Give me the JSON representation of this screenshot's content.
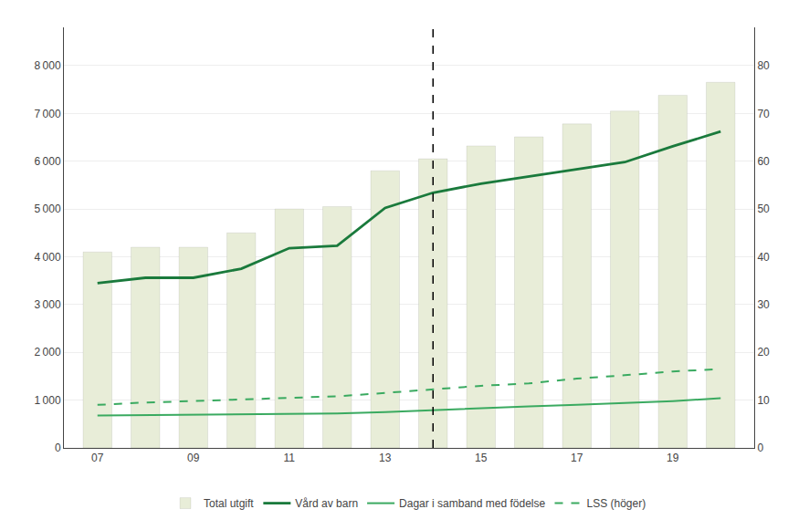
{
  "chart_data": {
    "type": "bar",
    "x": [
      7,
      8,
      9,
      10,
      11,
      12,
      13,
      14,
      15,
      16,
      17,
      18,
      19,
      20
    ],
    "xlim": [
      6.3,
      20.7
    ],
    "xticks": [
      {
        "value": 7,
        "label": "07"
      },
      {
        "value": 9,
        "label": "09"
      },
      {
        "value": 11,
        "label": "11"
      },
      {
        "value": 13,
        "label": "13"
      },
      {
        "value": 15,
        "label": "15"
      },
      {
        "value": 17,
        "label": "17"
      },
      {
        "value": 19,
        "label": "19"
      }
    ],
    "ylim": [
      0,
      8800
    ],
    "yticks": [
      0,
      {
        "value": 1000,
        "label": "1 000"
      },
      {
        "value": 2000,
        "label": "2 000"
      },
      {
        "value": 3000,
        "label": "3 000"
      },
      {
        "value": 4000,
        "label": "4 000"
      },
      {
        "value": 5000,
        "label": "5 000"
      },
      {
        "value": 6000,
        "label": "6 000"
      },
      {
        "value": 7000,
        "label": "7 000"
      },
      {
        "value": 8000,
        "label": "8 000"
      }
    ],
    "y2lim": [
      0,
      88
    ],
    "y2ticks": [
      0,
      10,
      20,
      30,
      40,
      50,
      60,
      70,
      80
    ],
    "grid": true,
    "legend": "bottom",
    "series": [
      {
        "name": "Total utgift",
        "type": "bar",
        "color": "#e8edd8",
        "values": [
          4100,
          4200,
          4200,
          4500,
          5000,
          5050,
          5800,
          6050,
          6320,
          6510,
          6780,
          7050,
          7380,
          7650
        ]
      },
      {
        "name": "Vård av barn",
        "type": "line",
        "color": "#1a7a3c",
        "line_style": "solid",
        "values": [
          3450,
          3560,
          3560,
          3750,
          4180,
          4230,
          5020,
          5340,
          5530,
          5680,
          5840,
          5980,
          6310,
          6620
        ]
      },
      {
        "name": "Dagar i samband med födelse",
        "type": "line",
        "color": "#3aaa60",
        "line_style": "solid",
        "values": [
          680,
          690,
          690,
          700,
          710,
          720,
          750,
          790,
          840,
          870,
          900,
          940,
          980,
          1040
        ]
      },
      {
        "name": "LSS (höger)",
        "type": "line",
        "color": "#3aaa60",
        "line_style": "dashed",
        "axis": "y2",
        "values": [
          9,
          9.5,
          9.8,
          10.1,
          10.5,
          10.8,
          11.5,
          12.2,
          13.0,
          13.5,
          14.5,
          15.2,
          16.0,
          16.5
        ]
      }
    ],
    "vline": {
      "x": 14.0,
      "color": "#000000",
      "line_style": "dashed"
    }
  }
}
